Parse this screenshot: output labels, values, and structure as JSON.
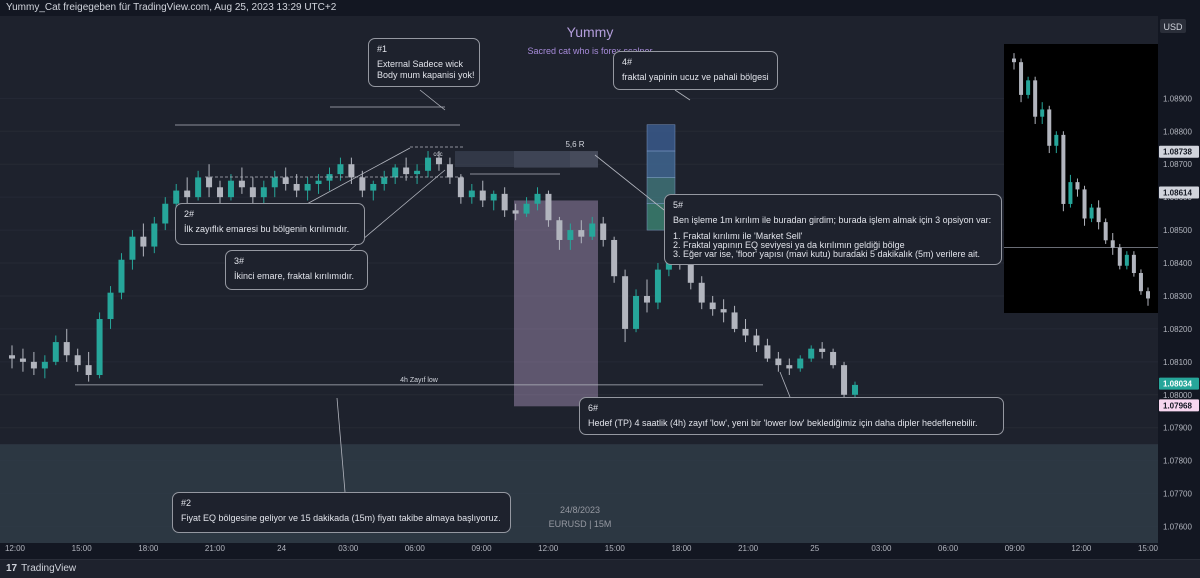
{
  "header": {
    "attribution": "Yummy_Cat freigegeben für TradingView.com, Aug 25, 2023 13:29 UTC+2",
    "brand": "TradingView"
  },
  "chart_title": "Yummy",
  "chart_subtitle": "Sacred cat who is forex scalper",
  "watermark": {
    "date": "24/8/2023",
    "symbol": "EURUSD | 15M"
  },
  "currency": "USD",
  "colors": {
    "background": "#1e222d",
    "up_candle": "#26a69a",
    "down_candle": "#b2b5be",
    "accent_purple": "#a78bda",
    "sell_zone": "#d8b8e8"
  },
  "annotations": {
    "n1": {
      "num": "#1",
      "lines": [
        "External Sadece wick",
        "Body mum kapanisi yok!"
      ]
    },
    "n2": {
      "num": "2#",
      "lines": [
        "İlk zayıflık emaresi bu bölgenin kırılımıdır."
      ]
    },
    "n3": {
      "num": "3#",
      "lines": [
        "İkinci emare, fraktal kırılımıdır."
      ]
    },
    "n4": {
      "num": "4#",
      "lines": [
        "fraktal yapinin ucuz ve pahali bölgesi"
      ]
    },
    "n5": {
      "num": "5#",
      "lines": [
        "Ben işleme 1m kırılım ile buradan girdim; burada işlem almak için 3 opsiyon var:",
        "1. Fraktal kırılımı ile 'Market Sell'",
        "2. Fraktal yapının EQ seviyesi ya da kırılımın geldiği bölge",
        "3. Eğer var ise, 'floor' yapısı (mavi kutu) buradaki 5 dakikalık (5m) verilere ait."
      ]
    },
    "n6": {
      "num": "6#",
      "lines": [
        "Hedef (TP) 4 saatlik (4h) zayıf 'low', yeni bir 'lower low' beklediğimiz için daha dipler hedeflenebilir."
      ]
    },
    "n7": {
      "num": "#2",
      "lines": [
        "Fiyat EQ bölgesine geliyor ve 15 dakikada (15m) fiyatı takibe almaya başlıyoruz."
      ]
    }
  },
  "chart_labels": {
    "risk_reward": "5,6 R",
    "weak_low": "4h Zayıf low",
    "coc": "coc"
  },
  "chart_data": {
    "type": "candlestick",
    "y_axis": {
      "range": [
        1.0755,
        1.0915
      ],
      "ticks": [
        1.089,
        1.088,
        1.087,
        1.086,
        1.085,
        1.084,
        1.083,
        1.082,
        1.081,
        1.08,
        1.079,
        1.078,
        1.077,
        1.076
      ],
      "price_labels": [
        {
          "value": 1.08738,
          "bg": "#d1d4dc",
          "fg": "#131722"
        },
        {
          "value": 1.08614,
          "bg": "#d1d4dc",
          "fg": "#131722"
        },
        {
          "value": 1.08034,
          "bg": "#26a69a",
          "fg": "#ffffff"
        },
        {
          "value": 1.07968,
          "bg": "#f8d7f0",
          "fg": "#131722"
        }
      ]
    },
    "x_axis": {
      "ticks": [
        "12:00",
        "15:00",
        "18:00",
        "21:00",
        "24",
        "03:00",
        "06:00",
        "09:00",
        "12:00",
        "15:00",
        "18:00",
        "21:00",
        "25",
        "03:00",
        "06:00",
        "09:00",
        "12:00",
        "15:00"
      ]
    },
    "levels": {
      "weak_low": 1.0803,
      "sell_zone_top": 1.0859,
      "sell_zone_bottom": 1.07965,
      "sl_top": 1.0874,
      "sl_bottom": 1.0869,
      "discount_zone_bottom": 1.0785,
      "fractal_top": 1.0882,
      "fractal_bottom": 1.085
    },
    "candles": [
      [
        1.0812,
        1.0815,
        1.0808,
        1.0811
      ],
      [
        1.0811,
        1.0814,
        1.0807,
        1.081
      ],
      [
        1.081,
        1.0813,
        1.0806,
        1.0808
      ],
      [
        1.0808,
        1.0812,
        1.0805,
        1.081
      ],
      [
        1.081,
        1.0818,
        1.0809,
        1.0816
      ],
      [
        1.0816,
        1.082,
        1.081,
        1.0812
      ],
      [
        1.0812,
        1.0814,
        1.0807,
        1.0809
      ],
      [
        1.0809,
        1.0813,
        1.0804,
        1.0806
      ],
      [
        1.0806,
        1.0825,
        1.0805,
        1.0823
      ],
      [
        1.0823,
        1.0833,
        1.082,
        1.0831
      ],
      [
        1.0831,
        1.0843,
        1.0829,
        1.0841
      ],
      [
        1.0841,
        1.085,
        1.0838,
        1.0848
      ],
      [
        1.0848,
        1.0852,
        1.0842,
        1.0845
      ],
      [
        1.0845,
        1.0854,
        1.0843,
        1.0852
      ],
      [
        1.0852,
        1.086,
        1.085,
        1.0858
      ],
      [
        1.0858,
        1.0864,
        1.0854,
        1.0862
      ],
      [
        1.0862,
        1.0866,
        1.0858,
        1.086
      ],
      [
        1.086,
        1.0868,
        1.0859,
        1.0866
      ],
      [
        1.0866,
        1.087,
        1.086,
        1.0863
      ],
      [
        1.0863,
        1.0865,
        1.0858,
        1.086
      ],
      [
        1.086,
        1.0867,
        1.0859,
        1.0865
      ],
      [
        1.0865,
        1.0869,
        1.0861,
        1.0863
      ],
      [
        1.0863,
        1.0866,
        1.0858,
        1.086
      ],
      [
        1.086,
        1.0865,
        1.0857,
        1.0863
      ],
      [
        1.0863,
        1.0868,
        1.086,
        1.0866
      ],
      [
        1.0866,
        1.0869,
        1.0862,
        1.0864
      ],
      [
        1.0864,
        1.0867,
        1.086,
        1.0862
      ],
      [
        1.0862,
        1.0866,
        1.0859,
        1.0864
      ],
      [
        1.0864,
        1.0867,
        1.0861,
        1.0865
      ],
      [
        1.0865,
        1.0869,
        1.0862,
        1.0867
      ],
      [
        1.0867,
        1.0872,
        1.0865,
        1.087
      ],
      [
        1.087,
        1.0872,
        1.0864,
        1.0866
      ],
      [
        1.0866,
        1.0868,
        1.086,
        1.0862
      ],
      [
        1.0862,
        1.0865,
        1.0859,
        1.0864
      ],
      [
        1.0864,
        1.0868,
        1.0862,
        1.0866
      ],
      [
        1.0866,
        1.087,
        1.0864,
        1.0869
      ],
      [
        1.0869,
        1.0872,
        1.0865,
        1.0867
      ],
      [
        1.0867,
        1.087,
        1.0864,
        1.0868
      ],
      [
        1.0868,
        1.0874,
        1.0866,
        1.0872
      ],
      [
        1.0872,
        1.0874,
        1.0868,
        1.087
      ],
      [
        1.087,
        1.0872,
        1.0864,
        1.0866
      ],
      [
        1.0866,
        1.0867,
        1.0858,
        1.086
      ],
      [
        1.086,
        1.0864,
        1.0858,
        1.0862
      ],
      [
        1.0862,
        1.0865,
        1.0857,
        1.0859
      ],
      [
        1.0859,
        1.0862,
        1.0856,
        1.0861
      ],
      [
        1.0861,
        1.0863,
        1.0854,
        1.0856
      ],
      [
        1.0856,
        1.0858,
        1.0853,
        1.0855
      ],
      [
        1.0855,
        1.086,
        1.0854,
        1.0858
      ],
      [
        1.0858,
        1.0863,
        1.0856,
        1.0861
      ],
      [
        1.0861,
        1.0862,
        1.0851,
        1.0853
      ],
      [
        1.0853,
        1.0854,
        1.0844,
        1.0847
      ],
      [
        1.0847,
        1.0852,
        1.0844,
        1.085
      ],
      [
        1.085,
        1.0853,
        1.0846,
        1.0848
      ],
      [
        1.0848,
        1.0854,
        1.0847,
        1.0852
      ],
      [
        1.0852,
        1.0854,
        1.0845,
        1.0847
      ],
      [
        1.0847,
        1.0848,
        1.0834,
        1.0836
      ],
      [
        1.0836,
        1.0838,
        1.0816,
        1.082
      ],
      [
        1.082,
        1.0832,
        1.0819,
        1.083
      ],
      [
        1.083,
        1.0835,
        1.0825,
        1.0828
      ],
      [
        1.0828,
        1.084,
        1.0826,
        1.0838
      ],
      [
        1.0838,
        1.0846,
        1.0836,
        1.0844
      ],
      [
        1.0844,
        1.0846,
        1.0838,
        1.084
      ],
      [
        1.084,
        1.0842,
        1.0832,
        1.0834
      ],
      [
        1.0834,
        1.0836,
        1.0826,
        1.0828
      ],
      [
        1.0828,
        1.083,
        1.0824,
        1.0826
      ],
      [
        1.0826,
        1.0829,
        1.0822,
        1.0825
      ],
      [
        1.0825,
        1.0827,
        1.0819,
        1.082
      ],
      [
        1.082,
        1.0823,
        1.0816,
        1.0818
      ],
      [
        1.0818,
        1.082,
        1.0813,
        1.0815
      ],
      [
        1.0815,
        1.0817,
        1.081,
        1.0811
      ],
      [
        1.0811,
        1.0813,
        1.0807,
        1.0809
      ],
      [
        1.0809,
        1.0811,
        1.0806,
        1.0808
      ],
      [
        1.0808,
        1.0812,
        1.0807,
        1.0811
      ],
      [
        1.0811,
        1.0815,
        1.081,
        1.0814
      ],
      [
        1.0814,
        1.0816,
        1.0811,
        1.0813
      ],
      [
        1.0813,
        1.0814,
        1.0808,
        1.0809
      ],
      [
        1.0809,
        1.081,
        1.0797,
        1.08
      ],
      [
        1.08,
        1.0804,
        1.0798,
        1.0803
      ]
    ],
    "inset": {
      "candles": [
        [
          1.0888,
          1.08895,
          1.0885,
          1.0887
        ],
        [
          1.0887,
          1.0888,
          1.0876,
          1.0878
        ],
        [
          1.0878,
          1.0883,
          1.0877,
          1.0882
        ],
        [
          1.0882,
          1.0883,
          1.087,
          1.0872
        ],
        [
          1.0872,
          1.0876,
          1.087,
          1.0874
        ],
        [
          1.0874,
          1.0875,
          1.0862,
          1.0864
        ],
        [
          1.0864,
          1.0868,
          1.0862,
          1.0867
        ],
        [
          1.0867,
          1.0868,
          1.0846,
          1.0848
        ],
        [
          1.0848,
          1.0856,
          1.0847,
          1.0854
        ],
        [
          1.0854,
          1.0855,
          1.085,
          1.0852
        ],
        [
          1.0852,
          1.0853,
          1.0842,
          1.0844
        ],
        [
          1.0844,
          1.0848,
          1.0843,
          1.0847
        ],
        [
          1.0847,
          1.0849,
          1.0841,
          1.0843
        ],
        [
          1.0843,
          1.0844,
          1.0837,
          1.0838
        ],
        [
          1.0838,
          1.084,
          1.0834,
          1.0836
        ],
        [
          1.0836,
          1.0837,
          1.083,
          1.0831
        ],
        [
          1.0831,
          1.0835,
          1.083,
          1.0834
        ],
        [
          1.0834,
          1.0835,
          1.0828,
          1.0829
        ],
        [
          1.0829,
          1.083,
          1.0823,
          1.0824
        ],
        [
          1.0824,
          1.0825,
          1.082,
          1.0822
        ]
      ]
    }
  }
}
